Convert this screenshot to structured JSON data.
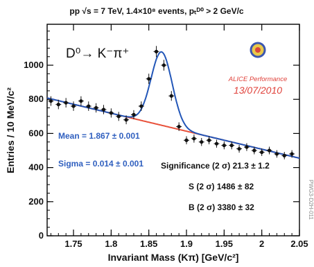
{
  "chart_data": {
    "type": "scatter",
    "title": "pp √s = 7 TeV, 1.4×10⁸ events, pₜᴰ⁰ > 2 GeV/c",
    "reaction": "D⁰→ K⁻π⁺",
    "xlabel": "Invariant Mass (Kπ) [GeV/c²]",
    "ylabel": "Entries / 10 MeV/c²",
    "xlim": [
      1.715,
      2.05
    ],
    "ylim": [
      0,
      1240
    ],
    "x_tick_labels": [
      "1.75",
      "1.8",
      "1.85",
      "1.9",
      "1.95",
      "2",
      "2.05"
    ],
    "y_tick_labels": [
      "0",
      "200",
      "400",
      "600",
      "800",
      "1000"
    ],
    "series": [
      {
        "x": [
          1.72,
          1.73,
          1.74,
          1.75,
          1.76,
          1.77,
          1.78,
          1.79,
          1.8,
          1.81,
          1.82,
          1.83,
          1.84,
          1.85,
          1.86,
          1.87,
          1.88,
          1.89,
          1.9,
          1.91,
          1.92,
          1.93,
          1.94,
          1.95,
          1.96,
          1.97,
          1.98,
          1.99,
          2.0,
          2.01,
          2.02,
          2.03,
          2.04
        ],
        "y": [
          790,
          770,
          780,
          760,
          790,
          760,
          750,
          740,
          720,
          700,
          680,
          710,
          760,
          920,
          1080,
          1000,
          820,
          640,
          560,
          570,
          550,
          560,
          540,
          530,
          530,
          510,
          520,
          500,
          490,
          500,
          480,
          470,
          480
        ]
      }
    ],
    "fit": {
      "signal_mean": 1.867,
      "signal_sigma": 0.014,
      "signal_amplitude": 430,
      "background_start": 808,
      "background_end": 455
    },
    "annotations": {
      "mean": "Mean = 1.867 ± 0.001",
      "sigma": "Sigma = 0.014 ± 0.001",
      "significance": "Significance (2 σ) 21.3 ± 1.2",
      "s": "S (2 σ) 1486 ± 82",
      "b": "B (2 σ) 3380 ± 32"
    },
    "logo_text": "ALICE Performance",
    "logo_date": "13/07/2010",
    "side_id": "PWG3-D2H-011"
  },
  "colors": {
    "fit_line": "#2256b8",
    "background_line": "#e8503a",
    "annotation_blue": "#2f5fbf",
    "logo_red": "#e0413a",
    "markers": "#111111"
  }
}
